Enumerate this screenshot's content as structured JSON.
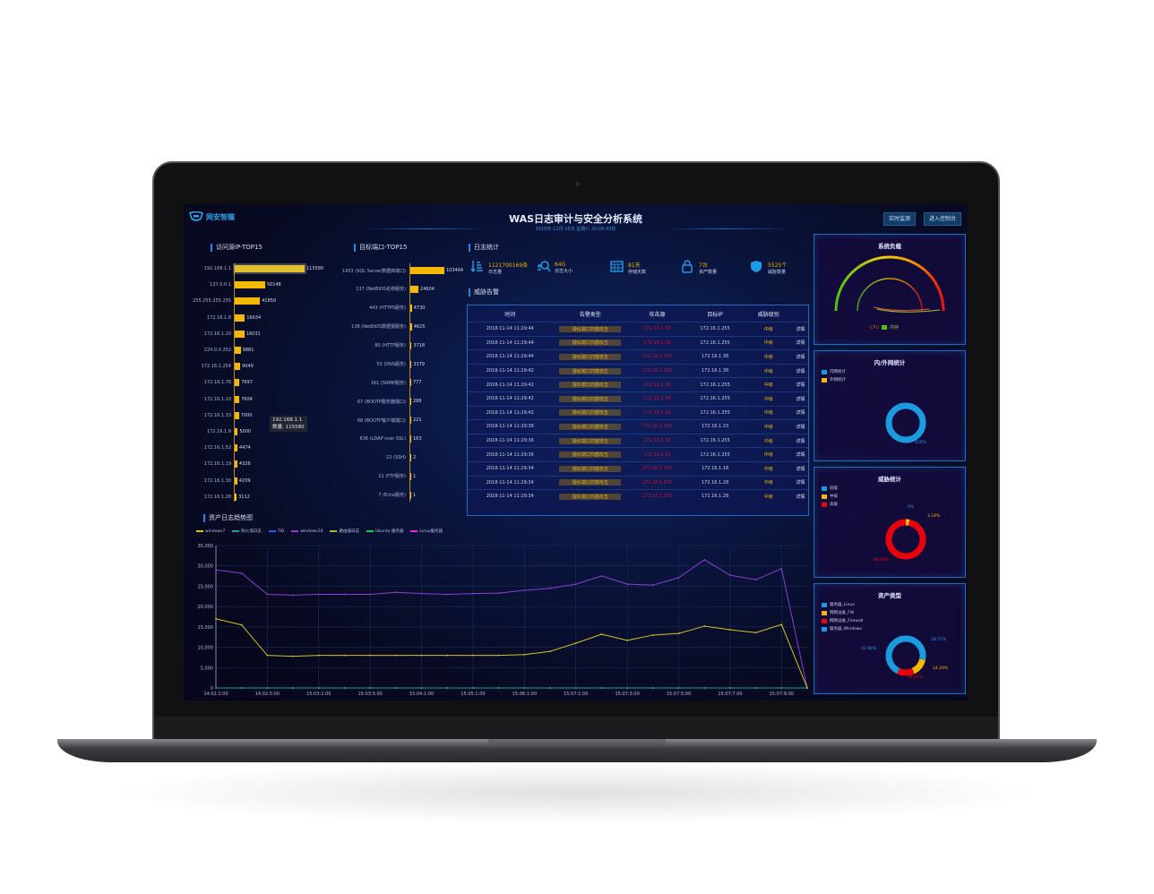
{
  "header": {
    "logo_text": "网安智瞳",
    "title": "WAS日志审计与安全分析系统",
    "subtitle": "2018年-12月-15日 星期六 20:08:42秒",
    "buttons": [
      "实时监测",
      "进入控制台"
    ]
  },
  "ip_top15": {
    "title": "访问源IP-TOP15",
    "items": [
      {
        "label": "192.168.1.1",
        "value": 115580
      },
      {
        "label": "127.0.0.1",
        "value": 50148
      },
      {
        "label": "255.255.255.255",
        "value": 41850
      },
      {
        "label": "172.16.1.8",
        "value": 16634
      },
      {
        "label": "172.16.1.20",
        "value": 16031
      },
      {
        "label": "224.0.0.252",
        "value": 9881
      },
      {
        "label": "172.16.1.254",
        "value": 9049
      },
      {
        "label": "172.16.1.76",
        "value": 7697
      },
      {
        "label": "172.16.1.10",
        "value": 7604
      },
      {
        "label": "172.16.1.33",
        "value": 7000
      },
      {
        "label": "172.16.1.9",
        "value": 5000
      },
      {
        "label": "172.16.1.52",
        "value": 4474
      },
      {
        "label": "172.16.1.19",
        "value": 4326
      },
      {
        "label": "172.16.1.30",
        "value": 4209
      },
      {
        "label": "172.16.1.28",
        "value": 3112
      }
    ],
    "tooltip": {
      "line1": "192.168.1.1",
      "line2": "数量: 115580"
    },
    "bar_color": "#f5b800"
  },
  "port_top15": {
    "title": "目标端口-TOP15",
    "items": [
      {
        "label": "1433 (SQL Server数据库端口)",
        "value": 103464
      },
      {
        "label": "137 (NetBIOS名称服务)",
        "value": 24604
      },
      {
        "label": "443 (HTTPS服务)",
        "value": 4730
      },
      {
        "label": "138 (NetBIOS数据报服务)",
        "value": 4625
      },
      {
        "label": "80 (HTTP服务)",
        "value": 3718
      },
      {
        "label": "53 (DNS服务)",
        "value": 3379
      },
      {
        "label": "161 (SNMP服务)",
        "value": 777
      },
      {
        "label": "67 (BOOTP服务器端口)",
        "value": 288
      },
      {
        "label": "68 (BOOTP客户端端口)",
        "value": 221
      },
      {
        "label": "636 (LDAP over SSL)",
        "value": 163
      },
      {
        "label": "22 (SSH)",
        "value": 2
      },
      {
        "label": "21 (FTP服务)",
        "value": 1
      },
      {
        "label": "7 (Echo服务)",
        "value": 1
      }
    ]
  },
  "log_stats": {
    "title": "日志统计",
    "items": [
      {
        "icon": "sort-bars-icon",
        "value": "1121700169条",
        "label": "日志量"
      },
      {
        "icon": "zoom-search-icon",
        "value": "64G",
        "label": "日志大小"
      },
      {
        "icon": "calendar-icon",
        "value": "81天",
        "label": "存储天数"
      },
      {
        "icon": "lock-icon",
        "value": "7台",
        "label": "资产数量"
      },
      {
        "icon": "shield-icon",
        "value": "5525个",
        "label": "威胁数量"
      }
    ]
  },
  "alerts": {
    "title": "威胁告警",
    "columns": [
      "时间",
      "告警类型",
      "攻击源",
      "目标IP",
      "威胁级别",
      ""
    ],
    "rows": [
      [
        "2018-11-14 11:29:44",
        "疑似端口扫描攻击",
        "172.16.1.36",
        "172.16.1.255",
        "中级",
        "详情"
      ],
      [
        "2018-11-14 11:29:44",
        "疑似端口扫描攻击",
        "172.16.1.36",
        "172.16.1.255",
        "中级",
        "详情"
      ],
      [
        "2018-11-14 11:29:44",
        "疑似端口扫描攻击",
        "172.16.1.255",
        "172.16.1.36",
        "中级",
        "详情"
      ],
      [
        "2018-11-14 11:29:42",
        "疑似端口扫描攻击",
        "172.16.1.255",
        "172.16.1.36",
        "中级",
        "详情"
      ],
      [
        "2018-11-14 11:29:42",
        "疑似端口扫描攻击",
        "172.16.1.36",
        "172.16.1.255",
        "中级",
        "详情"
      ],
      [
        "2018-11-14 11:29:42",
        "疑似端口扫描攻击",
        "172.16.1.36",
        "172.16.1.255",
        "中级",
        "详情"
      ],
      [
        "2018-11-14 11:29:42",
        "疑似端口扫描攻击",
        "172.16.1.18",
        "172.16.1.255",
        "中级",
        "详情"
      ],
      [
        "2018-11-14 11:29:38",
        "疑似端口扫描攻击",
        "172.16.1.255",
        "172.16.1.33",
        "中级",
        "详情"
      ],
      [
        "2018-11-14 11:29:36",
        "疑似端口扫描攻击",
        "172.16.1.33",
        "172.16.1.255",
        "中级",
        "详情"
      ],
      [
        "2018-11-14 11:29:36",
        "疑似端口扫描攻击",
        "172.16.1.33",
        "172.16.1.255",
        "中级",
        "详情"
      ],
      [
        "2018-11-14 11:29:34",
        "疑似端口扫描攻击",
        "172.16.1.255",
        "172.16.1.18",
        "中级",
        "详情"
      ],
      [
        "2018-11-14 11:29:34",
        "疑似端口扫描攻击",
        "172.16.1.255",
        "172.16.1.28",
        "中级",
        "详情"
      ],
      [
        "2018-11-14 11:29:34",
        "疑似端口扫描攻击",
        "172.16.1.255",
        "172.16.1.28",
        "中级",
        "详情"
      ]
    ]
  },
  "gauge": {
    "title": "系统负载",
    "legend": [
      "CPU",
      "内存"
    ]
  },
  "net_stats": {
    "title": "内/外网统计",
    "legend": [
      {
        "label": "内网统计",
        "color": "#1a9be0"
      },
      {
        "label": "外网统计",
        "color": "#f5b800"
      }
    ],
    "values": [
      100,
      0
    ],
    "pct_label": "100%"
  },
  "threat_stats": {
    "title": "威胁统计",
    "legend": [
      {
        "label": "低级",
        "color": "#1a9be0"
      },
      {
        "label": "中级",
        "color": "#f5b800"
      },
      {
        "label": "高级",
        "color": "#e8000b"
      }
    ],
    "values": [
      0,
      3.18,
      96.82
    ],
    "pct_labels": [
      "0%",
      "3.18%",
      "96.82%"
    ]
  },
  "asset_types": {
    "title": "资产类型",
    "legend": [
      {
        "label": "服务器_Linux",
        "color": "#1a9be0"
      },
      {
        "label": "网络设备_FW",
        "color": "#f5b800"
      },
      {
        "label": "网络设备_Firewall",
        "color": "#e8000b"
      },
      {
        "label": "服务器_Windows",
        "color": "#1a9be0"
      }
    ],
    "values": [
      28.57,
      14.29,
      14.29,
      42.86
    ],
    "pct_labels": [
      "28.57%",
      "14.29%",
      "14.29%",
      "42.86%"
    ]
  },
  "chart_data": {
    "type": "line",
    "title": "资产日志趋势图",
    "ylim": [
      0,
      35000
    ],
    "yticks": [
      "0",
      "5,000",
      "10,000",
      "15,000",
      "20,000",
      "25,000",
      "30,000",
      "35,000"
    ],
    "xticks": [
      "14:02:1:00",
      "14:02:5:00",
      "15:03:1:00",
      "15:03:5:00",
      "15:04:1:00",
      "15:05:1:00",
      "15:06:1:00",
      "15:07:1:00",
      "15:07:3:00",
      "15:07:5:00",
      "15:07:7:00",
      "15:07:9:00"
    ],
    "grid": true,
    "legend_position": "top-left",
    "series": [
      {
        "name": "windows7",
        "color": "#d8c21c",
        "values": [
          17000,
          15500,
          8000,
          7800,
          8000,
          8000,
          8000,
          8000,
          8000,
          8000,
          8000,
          8000,
          8200,
          9000,
          11000,
          13200,
          11700,
          13000,
          13400,
          15200,
          14300,
          13600,
          15600,
          0
        ]
      },
      {
        "name": "防火墙日志",
        "color": "#14a39a",
        "values": [
          0,
          0,
          0,
          0,
          0,
          0,
          0,
          0,
          0,
          0,
          0,
          0,
          0,
          0,
          0,
          0,
          0,
          0,
          0,
          0,
          0,
          0,
          0,
          0
        ]
      },
      {
        "name": "TID",
        "color": "#1f5fe0",
        "values": [
          0,
          0,
          0,
          0,
          0,
          0,
          0,
          0,
          0,
          0,
          0,
          0,
          0,
          0,
          0,
          0,
          0,
          0,
          0,
          0,
          0,
          0,
          0,
          0
        ]
      },
      {
        "name": "windows10",
        "color": "#8a3fd0",
        "values": [
          29000,
          28200,
          23000,
          22800,
          23000,
          23000,
          23000,
          23500,
          23200,
          23000,
          23200,
          23300,
          24000,
          24500,
          25500,
          27500,
          25500,
          25300,
          27100,
          31500,
          27700,
          26600,
          29300,
          0
        ]
      },
      {
        "name": "路由器日志",
        "color": "#9bc03a",
        "values": [
          0,
          0,
          0,
          0,
          0,
          0,
          0,
          0,
          0,
          0,
          0,
          0,
          0,
          0,
          0,
          0,
          0,
          0,
          0,
          0,
          0,
          0,
          0,
          0
        ]
      },
      {
        "name": "Ubuntu 服务器",
        "color": "#14d23c",
        "values": [
          0,
          0,
          0,
          0,
          0,
          0,
          0,
          0,
          0,
          0,
          0,
          0,
          0,
          0,
          0,
          0,
          0,
          0,
          0,
          0,
          0,
          0,
          0,
          0
        ]
      },
      {
        "name": "Linux服务器",
        "color": "#e62ad8",
        "values": [
          0,
          0,
          0,
          0,
          0,
          0,
          0,
          0,
          0,
          0,
          0,
          0,
          0,
          0,
          0,
          0,
          0,
          0,
          0,
          0,
          0,
          0,
          0,
          0
        ]
      }
    ]
  }
}
